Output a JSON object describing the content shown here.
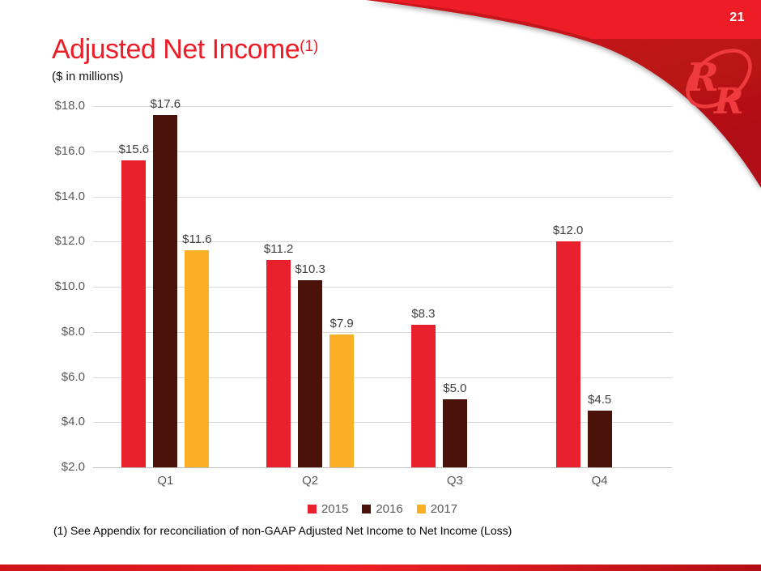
{
  "page": {
    "number": "21"
  },
  "slide": {
    "title": "Adjusted Net Income",
    "title_superscript": "(1)",
    "subtitle": "($ in millions)",
    "footnote": "(1) See Appendix for reconciliation of non-GAAP Adjusted Net Income to Net Income (Loss)"
  },
  "logo": {
    "name": "red-robin-rr-logo",
    "letters_1": "R",
    "letters_2": "R"
  },
  "colors": {
    "title_red": "#ed1c26",
    "band_bright_red": "#ed1c26",
    "swoosh_dark_red": "#c5141c",
    "swoosh_dark_red_deep": "#b01015",
    "logo_red": "#ef3a3e",
    "gridline": "#d9d9d9",
    "axis_line": "#bfbfbf",
    "axis_label_gray": "#595959",
    "data_label_gray": "#3f3f3f"
  },
  "chart_data": {
    "type": "bar",
    "title": "Adjusted Net Income ($ in millions)",
    "categories": [
      "Q1",
      "Q2",
      "Q3",
      "Q4"
    ],
    "series": [
      {
        "name": "2015",
        "color": "#e8202d",
        "values": [
          15.6,
          11.2,
          8.3,
          12.0
        ]
      },
      {
        "name": "2016",
        "color": "#4b120a",
        "values": [
          17.6,
          10.3,
          5.0,
          4.5
        ]
      },
      {
        "name": "2017",
        "color": "#fbaf24",
        "values": [
          11.6,
          7.9,
          null,
          null
        ]
      }
    ],
    "value_labels": [
      [
        "$15.6",
        "$17.6",
        "$11.6"
      ],
      [
        "$11.2",
        "$10.3",
        "$7.9"
      ],
      [
        "$8.3",
        "$5.0",
        null
      ],
      [
        "$12.0",
        "$4.5",
        null
      ]
    ],
    "y_axis": {
      "min": 2.0,
      "max": 18.0,
      "step": 2.0,
      "tick_labels": [
        "$2.0",
        "$4.0",
        "$6.0",
        "$8.0",
        "$10.0",
        "$12.0",
        "$14.0",
        "$16.0",
        "$18.0"
      ],
      "baseline_value": 2.0
    },
    "grid": true,
    "legend": {
      "position": "bottom",
      "entries": [
        "2015",
        "2016",
        "2017"
      ]
    }
  }
}
